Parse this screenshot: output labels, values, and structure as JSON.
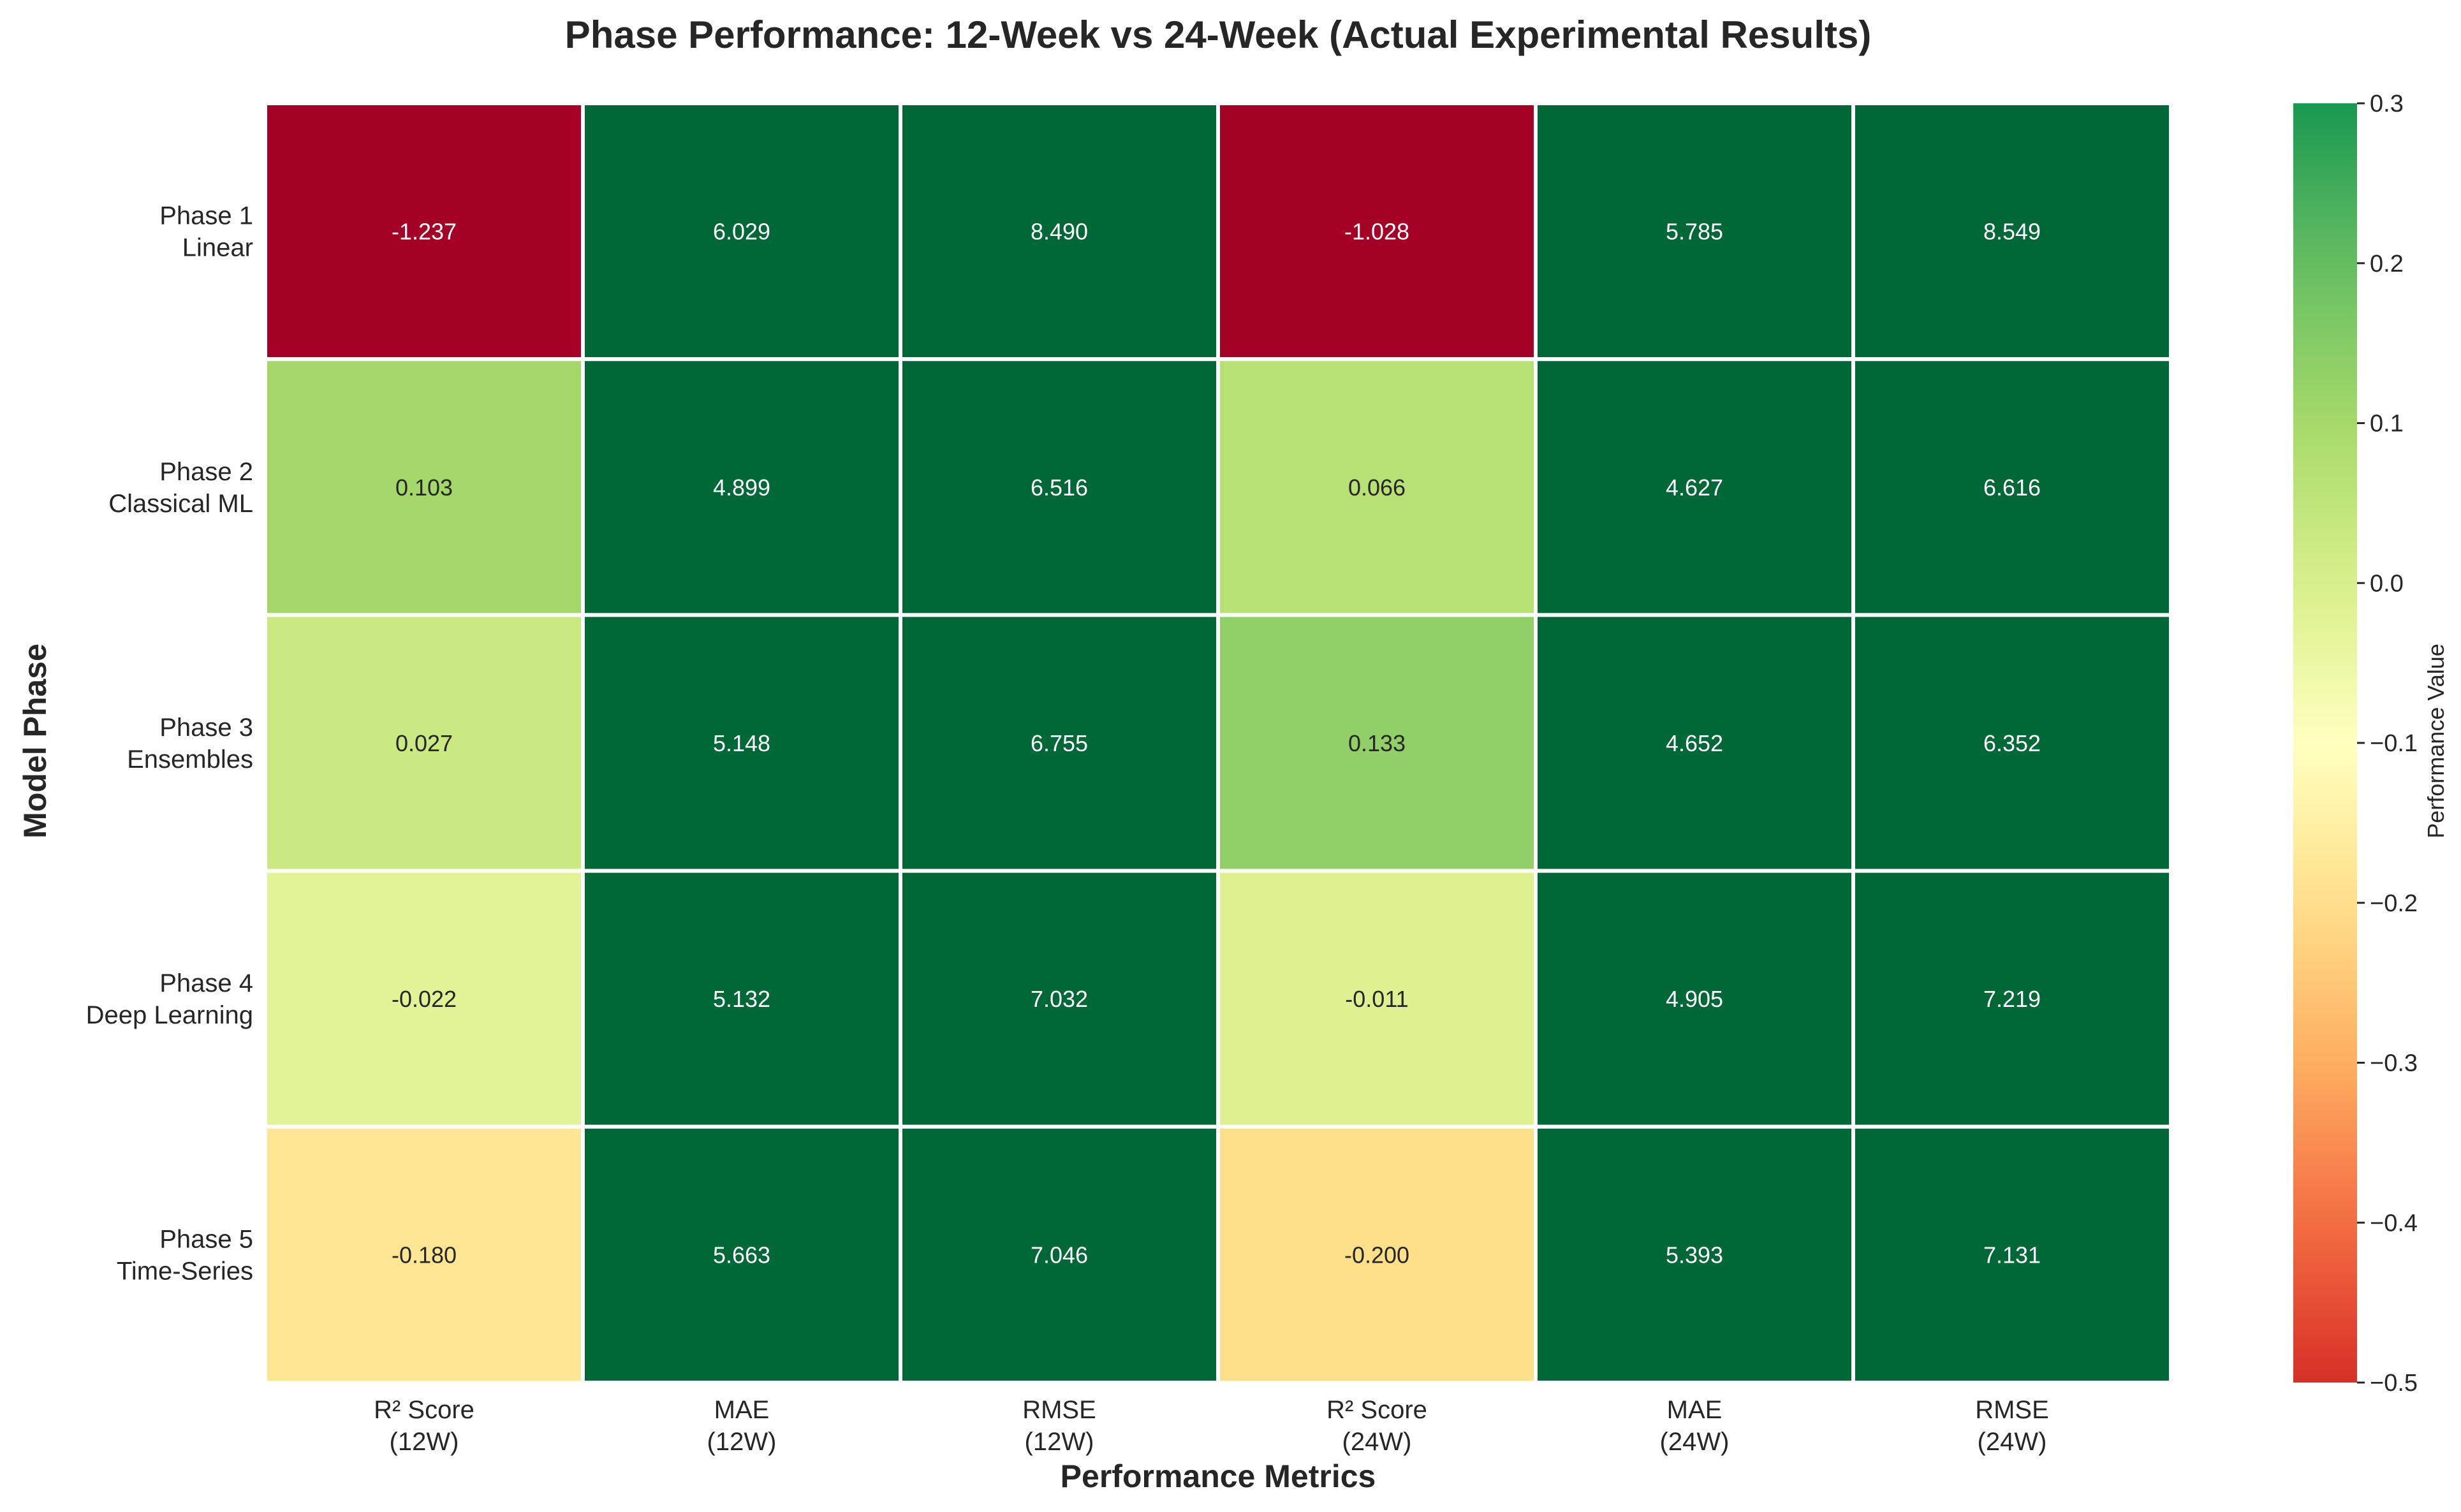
{
  "chart_data": {
    "type": "heatmap",
    "title": "Phase Performance: 12-Week vs 24-Week (Actual Experimental Results)",
    "xlabel": "Performance Metrics",
    "ylabel": "Model Phase",
    "colorbar_label": "Performance Value",
    "x_categories": [
      [
        "R² Score",
        "(12W)"
      ],
      [
        "MAE",
        "(12W)"
      ],
      [
        "RMSE",
        "(12W)"
      ],
      [
        "R² Score",
        "(24W)"
      ],
      [
        "MAE",
        "(24W)"
      ],
      [
        "RMSE",
        "(24W)"
      ]
    ],
    "y_categories": [
      [
        "Phase 1",
        "Linear"
      ],
      [
        "Phase 2",
        "Classical ML"
      ],
      [
        "Phase 3",
        "Ensembles"
      ],
      [
        "Phase 4",
        "Deep Learning"
      ],
      [
        "Phase 5",
        "Time-Series"
      ]
    ],
    "values": [
      [
        -1.237,
        6.029,
        8.49,
        -1.028,
        5.785,
        8.549
      ],
      [
        0.103,
        4.899,
        6.516,
        0.066,
        4.627,
        6.616
      ],
      [
        0.027,
        5.148,
        6.755,
        0.133,
        4.652,
        6.352
      ],
      [
        -0.022,
        5.132,
        7.032,
        -0.011,
        4.905,
        7.219
      ],
      [
        -0.18,
        5.663,
        7.046,
        -0.2,
        5.393,
        7.131
      ]
    ],
    "value_labels": [
      [
        "-1.237",
        "6.029",
        "8.490",
        "-1.028",
        "5.785",
        "8.549"
      ],
      [
        "0.103",
        "4.899",
        "6.516",
        "0.066",
        "4.627",
        "6.616"
      ],
      [
        "0.027",
        "5.148",
        "6.755",
        "0.133",
        "4.652",
        "6.352"
      ],
      [
        "-0.022",
        "5.132",
        "7.032",
        "-0.011",
        "4.905",
        "7.219"
      ],
      [
        "-0.180",
        "5.663",
        "7.046",
        "-0.200",
        "5.393",
        "7.131"
      ]
    ],
    "color_range": [
      -0.5,
      0.3
    ],
    "colormap": "RdYlGn",
    "colorbar_ticks": [
      0.3,
      0.2,
      0.1,
      0.0,
      -0.1,
      -0.2,
      -0.3,
      -0.4,
      -0.5
    ],
    "colorbar_tick_labels": [
      "0.3",
      "0.2",
      "0.1",
      "0.0",
      "−0.1",
      "−0.2",
      "−0.3",
      "−0.4",
      "−0.5"
    ],
    "grid": false,
    "colors": {
      "cell_border": "#ffffff",
      "text_dark": "#262626",
      "text_light": "#ffffff"
    }
  }
}
